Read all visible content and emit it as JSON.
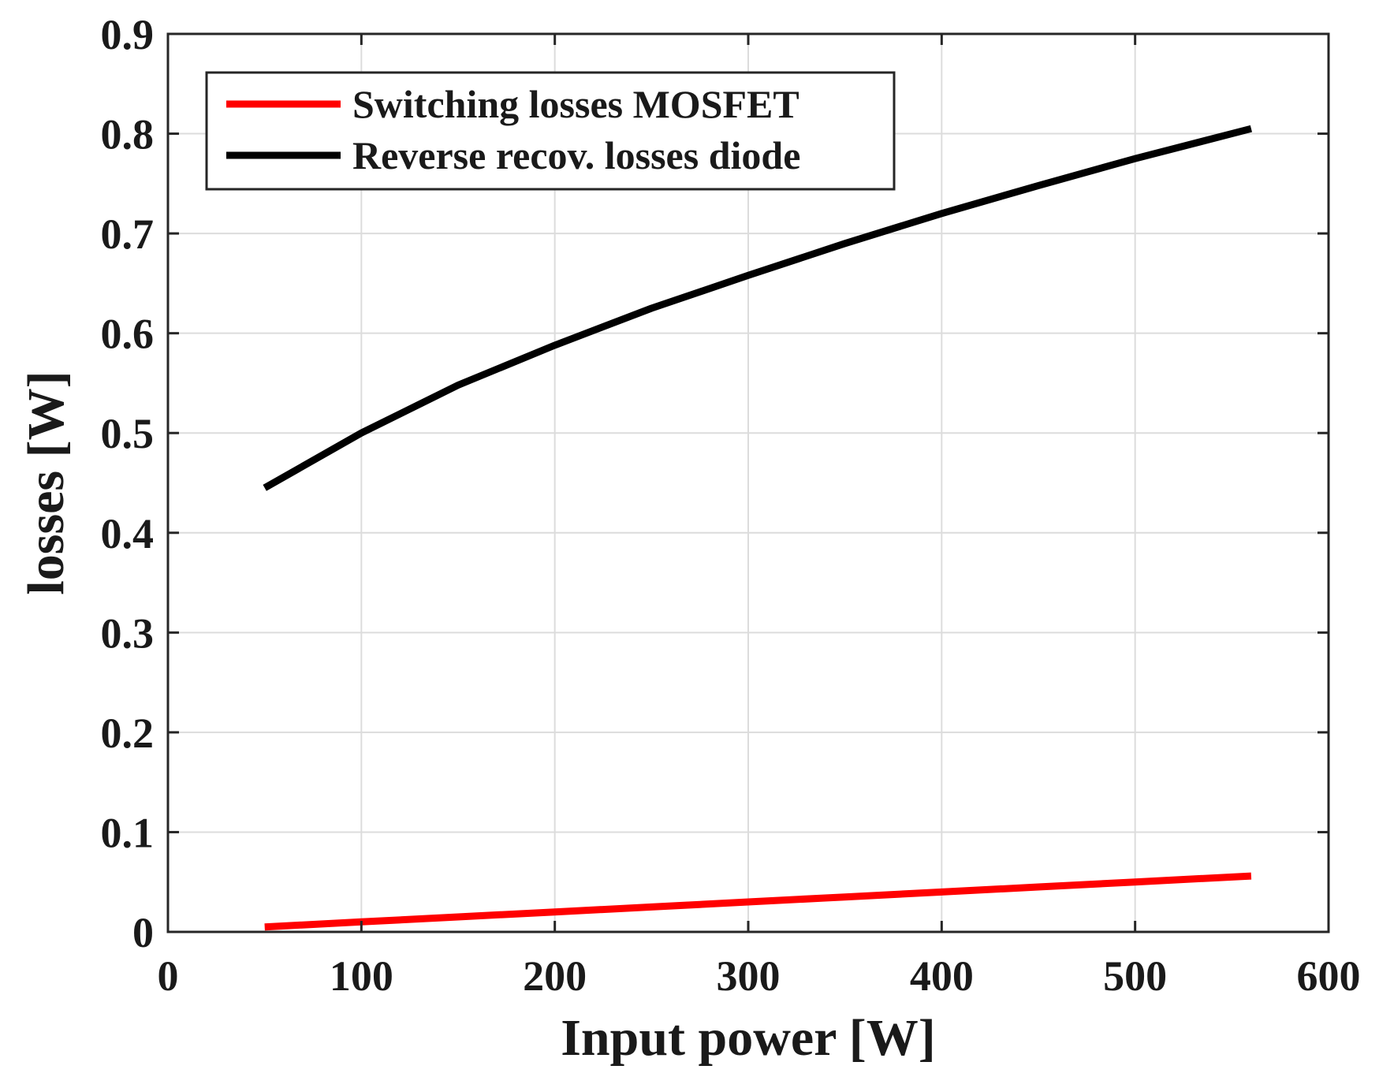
{
  "chart_data": {
    "type": "line",
    "title": "",
    "xlabel": "Input power [W]",
    "ylabel": "losses [W]",
    "xlim": [
      0,
      600
    ],
    "ylim": [
      0,
      0.9
    ],
    "xticks": [
      0,
      100,
      200,
      300,
      400,
      500,
      600
    ],
    "xtick_labels": [
      "0",
      "100",
      "200",
      "300",
      "400",
      "500",
      "600"
    ],
    "yticks": [
      0,
      0.1,
      0.2,
      0.3,
      0.4,
      0.5,
      0.6,
      0.7,
      0.8,
      0.9
    ],
    "ytick_labels": [
      "0",
      "0.1",
      "0.2",
      "0.3",
      "0.4",
      "0.5",
      "0.6",
      "0.7",
      "0.8",
      "0.9"
    ],
    "grid": true,
    "legend_position": "top-left",
    "series": [
      {
        "name": "Switching losses MOSFET",
        "color": "#ff0000",
        "x": [
          50,
          100,
          150,
          200,
          250,
          300,
          350,
          400,
          450,
          500,
          560
        ],
        "y": [
          0.005,
          0.01,
          0.015,
          0.02,
          0.025,
          0.03,
          0.035,
          0.04,
          0.045,
          0.05,
          0.056
        ]
      },
      {
        "name": "Reverse recov. losses diode",
        "color": "#000000",
        "x": [
          50,
          100,
          150,
          200,
          250,
          300,
          350,
          400,
          450,
          500,
          560
        ],
        "y": [
          0.445,
          0.5,
          0.548,
          0.588,
          0.625,
          0.658,
          0.69,
          0.72,
          0.748,
          0.775,
          0.805
        ]
      }
    ]
  }
}
